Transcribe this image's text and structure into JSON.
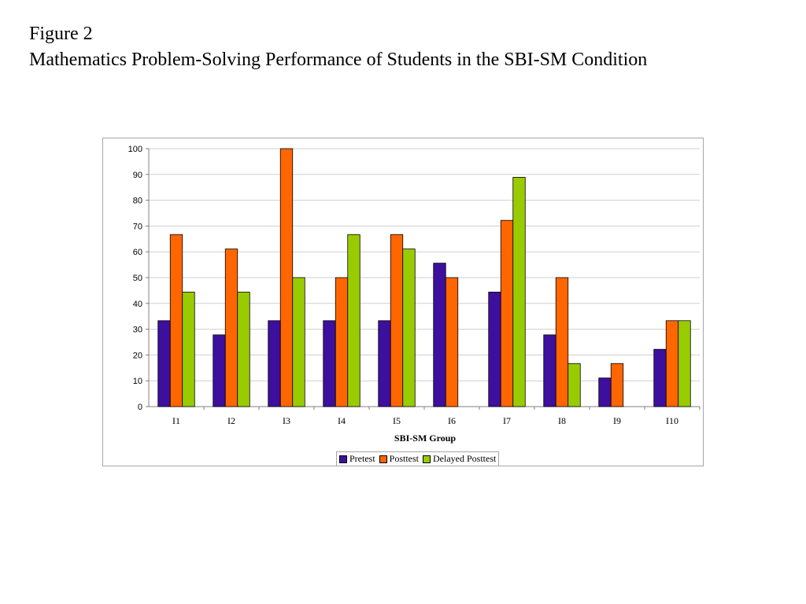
{
  "heading": {
    "line1": "Figure 2",
    "line2": "Mathematics Problem-Solving Performance of Students in the SBI-SM Condition"
  },
  "chart_data": {
    "type": "bar",
    "title": "",
    "xlabel": "SBI-SM Group",
    "ylabel": "",
    "ylim": [
      0,
      100
    ],
    "yticks": [
      0,
      10,
      20,
      30,
      40,
      50,
      60,
      70,
      80,
      90,
      100
    ],
    "grid": true,
    "legend_position": "bottom",
    "categories": [
      "I1",
      "I2",
      "I3",
      "I4",
      "I5",
      "I6",
      "I7",
      "I8",
      "I9",
      "I10"
    ],
    "series": [
      {
        "name": "Pretest",
        "color": "#3d0f9e",
        "values": [
          33.3,
          27.8,
          33.3,
          33.3,
          33.3,
          55.6,
          44.4,
          27.8,
          11.1,
          22.2
        ]
      },
      {
        "name": "Posttest",
        "color": "#ff6600",
        "values": [
          66.7,
          61.1,
          100,
          50,
          66.7,
          50,
          72.2,
          50,
          16.7,
          33.3
        ]
      },
      {
        "name": "Delayed Posttest",
        "color": "#99cc00",
        "values": [
          44.4,
          44.4,
          50,
          66.7,
          61.1,
          0,
          88.9,
          16.7,
          0,
          33.3
        ]
      }
    ]
  }
}
